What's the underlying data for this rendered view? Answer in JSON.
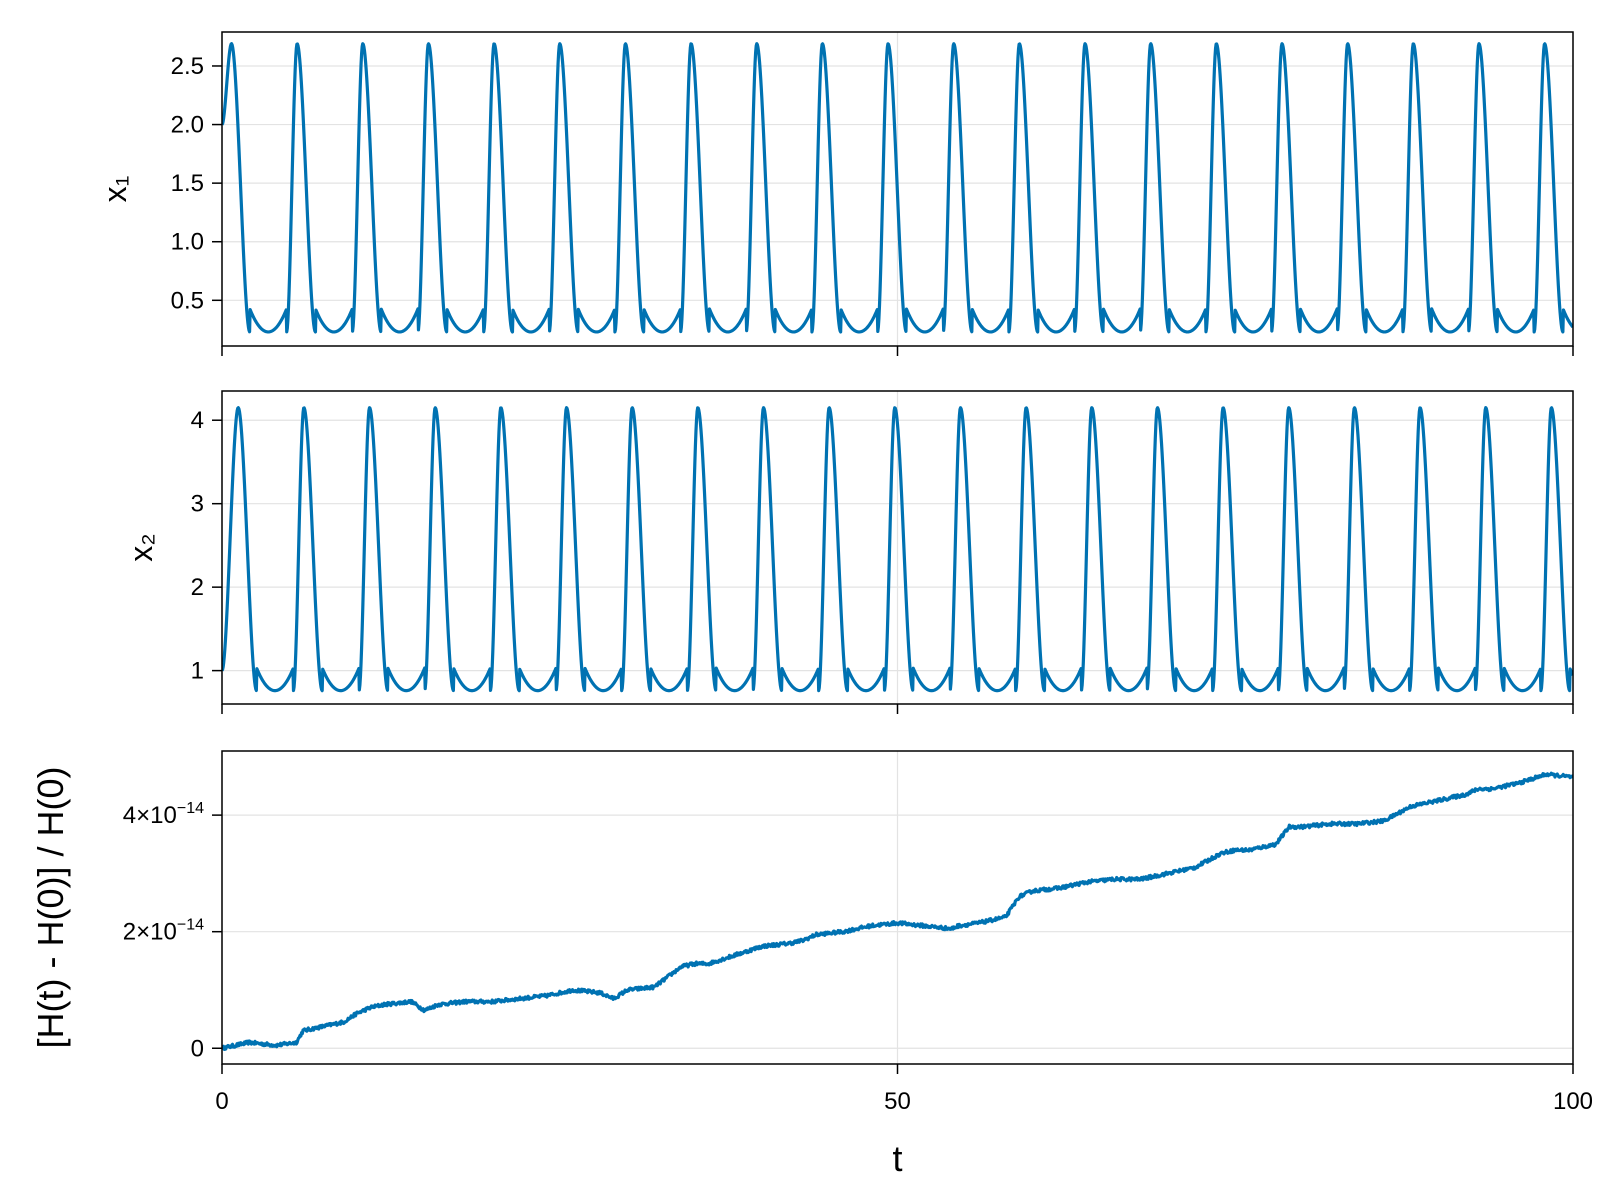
{
  "chart_data": [
    {
      "type": "line",
      "name": "x1",
      "ylabel": "x₁",
      "xlabel": "",
      "xlim": [
        0,
        100
      ],
      "ylim": [
        0.11,
        2.79
      ],
      "xticks": [
        0,
        50,
        100
      ],
      "yticks": [
        0.5,
        1.0,
        1.5,
        2.0,
        2.5
      ],
      "ytick_labels": [
        "0.5",
        "1.0",
        "1.5",
        "2.0",
        "2.5"
      ],
      "show_xtick_labels": false,
      "grid": true,
      "color": "#0072b2",
      "series": [
        {
          "x0": 0,
          "y0": 2.0,
          "period": 4.86,
          "max": 2.69,
          "min": 0.23,
          "first_peak_t": 0.7,
          "x_end": 100,
          "y_end": 0.36
        }
      ]
    },
    {
      "type": "line",
      "name": "x2",
      "ylabel": "x₂",
      "xlabel": "",
      "xlim": [
        0,
        100
      ],
      "ylim": [
        0.6,
        4.35
      ],
      "xticks": [
        0,
        50,
        100
      ],
      "yticks": [
        1,
        2,
        3,
        4
      ],
      "ytick_labels": [
        "1",
        "2",
        "3",
        "4"
      ],
      "show_xtick_labels": false,
      "grid": true,
      "color": "#0072b2",
      "series": [
        {
          "x0": 0,
          "y0": 1.0,
          "period": 4.86,
          "max": 4.15,
          "min": 0.76,
          "first_peak_t": 1.2,
          "x_end": 100,
          "y_end": 1.1
        }
      ]
    },
    {
      "type": "line",
      "name": "energy-error",
      "ylabel": "[H(t) - H(0)] / H(0)",
      "xlabel": "t",
      "xlim": [
        0,
        100
      ],
      "ylim": [
        -2.7e-15,
        5.1e-14
      ],
      "xticks": [
        0,
        50,
        100
      ],
      "xtick_labels": [
        "0",
        "50",
        "100"
      ],
      "yticks": [
        0,
        2e-14,
        4e-14
      ],
      "ytick_labels": [
        {
          "base": "0",
          "exp": ""
        },
        {
          "base": "2×10",
          "exp": "−14"
        },
        {
          "base": "4×10",
          "exp": "−14"
        }
      ],
      "grid": true,
      "color": "#0072b2",
      "series": [
        {
          "x": [
            0,
            2,
            4,
            5.5,
            6,
            7,
            9,
            10,
            11,
            12,
            14,
            15,
            16,
            18,
            20,
            22,
            24,
            26,
            28,
            29,
            30,
            32,
            34,
            35,
            36,
            38,
            40,
            42,
            43,
            44,
            46,
            48,
            50,
            52,
            54,
            54.5,
            56,
            58,
            59,
            60,
            62,
            64,
            66,
            68,
            70,
            72,
            74,
            75,
            76,
            78,
            79,
            80,
            82,
            84,
            86,
            88,
            90,
            92,
            93,
            94,
            96,
            98,
            100
          ],
          "y": [
            0.0,
            1e-15,
            5e-16,
            1e-15,
            3e-15,
            3.5e-15,
            4.5e-15,
            6e-15,
            7e-15,
            7.5e-15,
            8e-15,
            6.5e-15,
            7.5e-15,
            8e-15,
            8e-15,
            8.5e-15,
            9e-15,
            1e-14,
            9.5e-15,
            8.5e-15,
            1e-14,
            1.05e-14,
            1.4e-14,
            1.45e-14,
            1.45e-14,
            1.6e-14,
            1.75e-14,
            1.8e-14,
            1.85e-14,
            1.95e-14,
            2e-14,
            2.1e-14,
            2.15e-14,
            2.1e-14,
            2.05e-14,
            2.1e-14,
            2.15e-14,
            2.25e-14,
            2.6e-14,
            2.7e-14,
            2.75e-14,
            2.85e-14,
            2.9e-14,
            2.9e-14,
            3e-14,
            3.1e-14,
            3.35e-14,
            3.4e-14,
            3.4e-14,
            3.5e-14,
            3.8e-14,
            3.8e-14,
            3.85e-14,
            3.85e-14,
            3.9e-14,
            4.15e-14,
            4.25e-14,
            4.35e-14,
            4.45e-14,
            4.45e-14,
            4.55e-14,
            4.7e-14,
            4.65e-14
          ]
        }
      ]
    }
  ]
}
